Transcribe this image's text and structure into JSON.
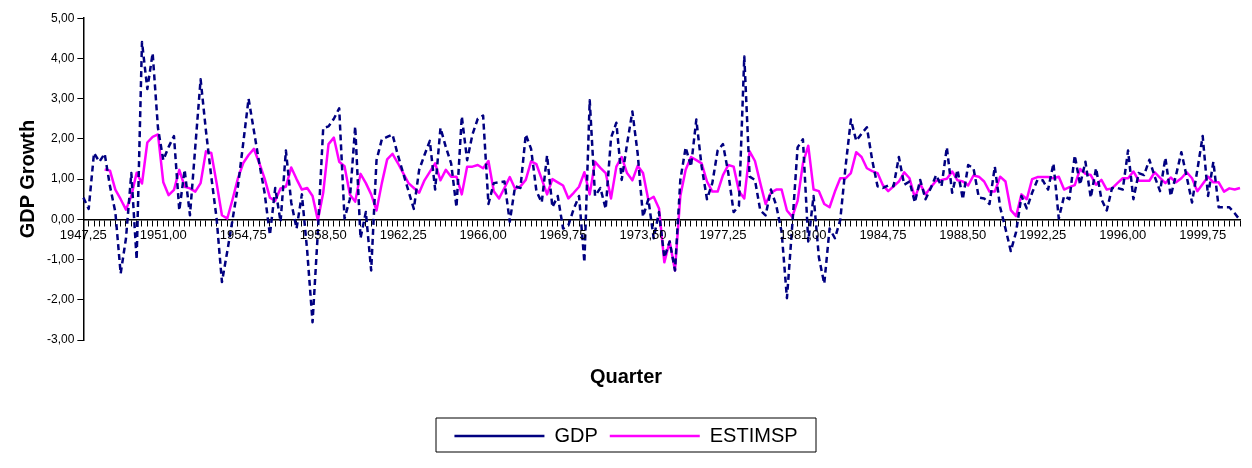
{
  "chart_data": {
    "type": "line",
    "xlabel": "Quarter",
    "ylabel": "GDP Growth",
    "categories": [
      "1947,25",
      null,
      null,
      null,
      null,
      null,
      null,
      null,
      null,
      null,
      null,
      null,
      null,
      null,
      null,
      "1951,00",
      null,
      null,
      null,
      null,
      null,
      null,
      null,
      null,
      null,
      null,
      null,
      null,
      null,
      null,
      "1954,75",
      null,
      null,
      null,
      null,
      null,
      null,
      null,
      null,
      null,
      null,
      null,
      null,
      null,
      null,
      "1958,50",
      null,
      null,
      null,
      null,
      null,
      null,
      null,
      null,
      null,
      null,
      null,
      null,
      null,
      null,
      "1962,25",
      null,
      null,
      null,
      null,
      null,
      null,
      null,
      null,
      null,
      null,
      null,
      null,
      null,
      null,
      "1966,00",
      null,
      null,
      null,
      null,
      null,
      null,
      null,
      null,
      null,
      null,
      null,
      null,
      null,
      null,
      "1969,75",
      null,
      null,
      null,
      null,
      null,
      null,
      null,
      null,
      null,
      null,
      null,
      null,
      null,
      null,
      "1973,50",
      null,
      null,
      null,
      null,
      null,
      null,
      null,
      null,
      null,
      null,
      null,
      null,
      null,
      null,
      "1977,25",
      null,
      null,
      null,
      null,
      null,
      null,
      null,
      null,
      null,
      null,
      null,
      null,
      null,
      null,
      "1981,00",
      null,
      null,
      null,
      null,
      null,
      null,
      null,
      null,
      null,
      null,
      null,
      null,
      null,
      null,
      "1984,75",
      null,
      null,
      null,
      null,
      null,
      null,
      null,
      null,
      null,
      null,
      null,
      null,
      null,
      null,
      "1988,50",
      null,
      null,
      null,
      null,
      null,
      null,
      null,
      null,
      null,
      null,
      null,
      null,
      null,
      null,
      "1992,25",
      null,
      null,
      null,
      null,
      null,
      null,
      null,
      null,
      null,
      null,
      null,
      null,
      null,
      null,
      "1996,00",
      null,
      null,
      null,
      null,
      null,
      null,
      null,
      null,
      null,
      null,
      null,
      null,
      null,
      null,
      "1999,75",
      null,
      null,
      null,
      null,
      null,
      null,
      null
    ],
    "series": [
      {
        "name": "GDP",
        "color": "#000080",
        "line_style": "dashed",
        "values": [
          0.54,
          0.26,
          1.65,
          1.43,
          1.63,
          0.82,
          0.18,
          -1.35,
          -0.47,
          1.15,
          -1.0,
          4.41,
          3.24,
          4.13,
          2.27,
          1.47,
          1.8,
          2.07,
          0.22,
          1.23,
          0.1,
          1.8,
          3.48,
          2.2,
          1.06,
          0.02,
          -1.56,
          -0.8,
          0,
          0.82,
          1.9,
          3.0,
          2.2,
          1.4,
          0.66,
          -0.39,
          0.78,
          -0.06,
          1.71,
          0.42,
          -0.23,
          0.62,
          -0.79,
          -2.56,
          -0.31,
          2.27,
          2.31,
          2.5,
          2.76,
          0.02,
          0.5,
          2.31,
          -0.47,
          0.18,
          -1.27,
          1.47,
          1.99,
          2.05,
          2.11,
          1.6,
          1.15,
          0.7,
          0.26,
          1.23,
          1.6,
          1.95,
          0.74,
          2.27,
          1.8,
          1.39,
          0.3,
          2.56,
          1.47,
          2.11,
          2.5,
          2.58,
          0.38,
          0.9,
          0.92,
          0.94,
          -0.06,
          0.82,
          0.78,
          2.11,
          1.75,
          0.7,
          0.42,
          1.59,
          0.3,
          0.58,
          -0.23,
          -0.15,
          0.26,
          0.58,
          -1.07,
          2.96,
          0.58,
          0.78,
          0.26,
          2.03,
          2.4,
          0.98,
          1.87,
          2.68,
          1.63,
          0.06,
          0.5,
          -0.47,
          0.18,
          -0.95,
          -0.55,
          -1.27,
          0.98,
          1.79,
          1.31,
          2.48,
          1.31,
          0.5,
          0.9,
          1.71,
          1.87,
          1.15,
          0.18,
          0.34,
          4.05,
          1.06,
          0.98,
          0.22,
          0.1,
          0.74,
          0.34,
          -0.31,
          -1.96,
          -0.15,
          1.79,
          1.99,
          -0.55,
          0.58,
          -0.95,
          -1.6,
          -0.23,
          -0.47,
          -0.02,
          1.31,
          2.48,
          1.95,
          2.13,
          2.29,
          1.47,
          0.82,
          0.78,
          0.84,
          0.82,
          1.55,
          0.86,
          0.94,
          0.42,
          0.98,
          0.5,
          0.78,
          1.1,
          0.82,
          1.79,
          0.66,
          1.23,
          0.5,
          1.35,
          1.27,
          0.54,
          0.52,
          0.38,
          1.31,
          0.3,
          -0.23,
          -0.79,
          -0.31,
          0.58,
          0.27,
          0.66,
          0.98,
          0.97,
          0.74,
          1.39,
          0.02,
          0.58,
          0.5,
          1.59,
          0.86,
          1.43,
          0.54,
          1.27,
          0.5,
          0.22,
          0.78,
          0.78,
          0.74,
          1.71,
          0.5,
          1.15,
          1.1,
          1.48,
          1.06,
          0.7,
          1.53,
          0.58,
          1.1,
          1.67,
          1.06,
          0.42,
          1.23,
          2.07,
          0.58,
          1.43,
          0.3,
          0.3,
          0.3,
          0.15,
          -0.02
        ]
      },
      {
        "name": "ESTIMSP",
        "color": "#ff00ff",
        "line_style": "solid",
        "values": [
          null,
          null,
          null,
          null,
          1.24,
          1.21,
          0.74,
          0.5,
          0.24,
          0.58,
          1.16,
          0.89,
          1.91,
          2.05,
          2.11,
          0.92,
          0.6,
          0.73,
          1.23,
          0.81,
          0.77,
          0.69,
          0.9,
          1.69,
          1.65,
          0.9,
          0.1,
          0.02,
          0.5,
          1.02,
          1.4,
          1.6,
          1.75,
          1.4,
          1.02,
          0.54,
          0.46,
          0.77,
          0.81,
          1.29,
          1.0,
          0.74,
          0.78,
          0.58,
          -0.02,
          0.66,
          1.87,
          2.03,
          1.43,
          1.32,
          0.62,
          0.44,
          1.13,
          0.9,
          0.62,
          0.22,
          0.9,
          1.49,
          1.63,
          1.4,
          1.15,
          0.9,
          0.78,
          0.66,
          0.97,
          1.18,
          1.39,
          0.97,
          1.23,
          1.06,
          1.06,
          0.62,
          1.31,
          1.31,
          1.35,
          1.27,
          1.45,
          0.7,
          0.52,
          0.78,
          1.05,
          0.76,
          0.82,
          0.98,
          1.44,
          1.37,
          1.0,
          0.62,
          1.0,
          0.92,
          0.84,
          0.52,
          0.66,
          0.81,
          1.17,
          0.62,
          1.43,
          1.28,
          1.15,
          0.52,
          1.31,
          1.55,
          1.15,
          0.97,
          1.33,
          1.15,
          0.48,
          0.56,
          0.27,
          -1.07,
          -0.55,
          -1.27,
          0.58,
          1.23,
          1.55,
          1.47,
          1.39,
          0.94,
          0.69,
          0.69,
          1.1,
          1.35,
          1.31,
          0.7,
          0.52,
          1.69,
          1.45,
          0.9,
          0.38,
          0.66,
          0.74,
          0.74,
          0.22,
          0.06,
          0.46,
          1.39,
          1.83,
          0.74,
          0.7,
          0.38,
          0.3,
          0.69,
          1.02,
          1.02,
          1.15,
          1.67,
          1.55,
          1.27,
          1.2,
          1.15,
          0.85,
          0.7,
          0.82,
          0.94,
          1.17,
          1.02,
          0.54,
          0.88,
          0.62,
          0.8,
          0.96,
          0.98,
          1.01,
          1.19,
          0.97,
          0.94,
          0.84,
          1.09,
          1.06,
          0.94,
          0.69,
          0.69,
          1.06,
          0.94,
          0.23,
          0.08,
          0.62,
          0.5,
          1.0,
          1.05,
          1.05,
          1.05,
          1.02,
          1.06,
          0.74,
          0.8,
          0.85,
          1.25,
          1.13,
          1.1,
          0.86,
          0.98,
          0.74,
          0.77,
          0.9,
          1.02,
          1.02,
          1.19,
          0.96,
          0.96,
          0.96,
          1.17,
          1.03,
          0.9,
          1.04,
          0.92,
          1.02,
          1.17,
          1.02,
          0.7,
          0.88,
          1.06,
          0.92,
          0.92,
          0.69,
          0.77,
          0.74,
          0.78
        ]
      }
    ],
    "ylim": [
      -3,
      5
    ],
    "yticks": [
      {
        "value": -3,
        "label": "-3,00"
      },
      {
        "value": -2,
        "label": "-2,00"
      },
      {
        "value": -1,
        "label": "-1,00"
      },
      {
        "value": 0,
        "label": "0,00"
      },
      {
        "value": 1,
        "label": "1,00"
      },
      {
        "value": 2,
        "label": "2,00"
      },
      {
        "value": 3,
        "label": "3,00"
      },
      {
        "value": 4,
        "label": "4,00"
      },
      {
        "value": 5,
        "label": "5,00"
      }
    ],
    "grid": false,
    "legend": "bottom",
    "marker": "none"
  }
}
